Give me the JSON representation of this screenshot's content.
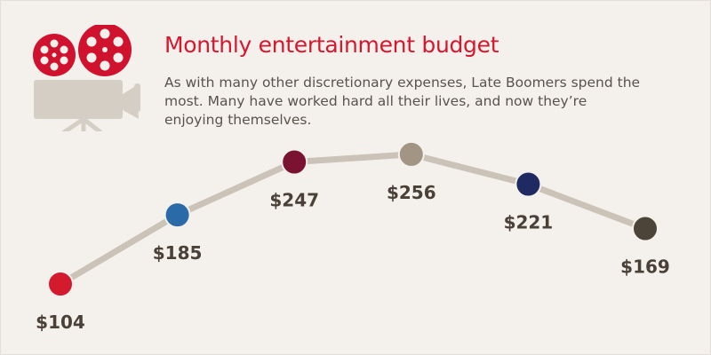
{
  "header": {
    "title": "Monthly entertainment budget",
    "subtitle": "As with many other discretionary expenses, Late Boomers spend the most. Many have worked hard all their lives, and now they’re enjoying themselves.",
    "icon": "movie-camera-icon"
  },
  "colors": {
    "background": "#f4f1ec",
    "title": "#d6172f",
    "line": "#cbc3b8",
    "label": "#4a4038"
  },
  "chart_data": {
    "type": "line",
    "title": "Monthly entertainment budget",
    "xlabel": "",
    "ylabel": "",
    "ylim": [
      0,
      300
    ],
    "grid": false,
    "legend": "none",
    "points": [
      {
        "value": 104,
        "label": "$104",
        "color": "#d41a2e"
      },
      {
        "value": 185,
        "label": "$185",
        "color": "#2a6aa8"
      },
      {
        "value": 247,
        "label": "$247",
        "color": "#7a1232"
      },
      {
        "value": 256,
        "label": "$256",
        "color": "#a39584"
      },
      {
        "value": 221,
        "label": "$221",
        "color": "#1f2a63"
      },
      {
        "value": 169,
        "label": "$169",
        "color": "#4d4439"
      }
    ]
  }
}
